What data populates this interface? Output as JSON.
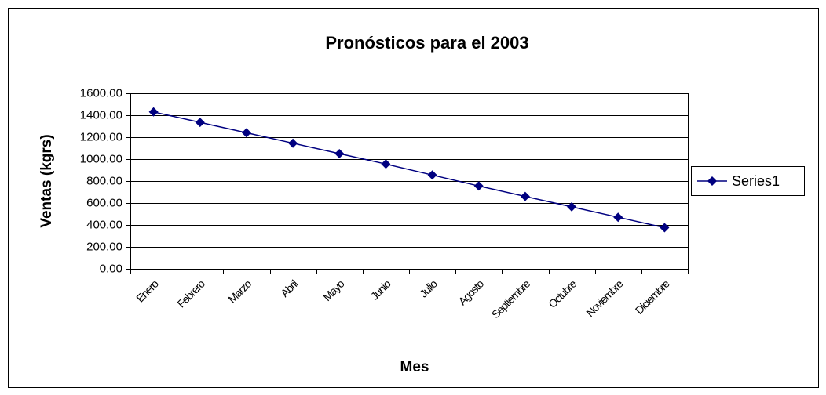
{
  "chart_data": {
    "type": "line",
    "title": "Pronósticos para el 2003",
    "x_label": "Mes",
    "y_label": "Ventas (kgrs)",
    "categories": [
      "Enero",
      "Febrero",
      "Marzo",
      "Abril",
      "Mayo",
      "Junio",
      "Julio",
      "Agosto",
      "Septiembre",
      "Octubre",
      "Noviembre",
      "Diciembre"
    ],
    "series": [
      {
        "name": "Series1",
        "color": "#000080",
        "values": [
          1430,
          1335,
          1240,
          1145,
          1050,
          955,
          855,
          755,
          660,
          565,
          470,
          375
        ]
      }
    ],
    "ylim": [
      0,
      1600
    ],
    "yticks": [
      {
        "value": 0,
        "label": "0.00"
      },
      {
        "value": 200,
        "label": "200.00"
      },
      {
        "value": 400,
        "label": "400.00"
      },
      {
        "value": 600,
        "label": "600.00"
      },
      {
        "value": 800,
        "label": "800.00"
      },
      {
        "value": 1000,
        "label": "1000.00"
      },
      {
        "value": 1200,
        "label": "1200.00"
      },
      {
        "value": 1400,
        "label": "1400.00"
      },
      {
        "value": 1600,
        "label": "1600.00"
      }
    ],
    "grid": true,
    "legend": "right"
  }
}
